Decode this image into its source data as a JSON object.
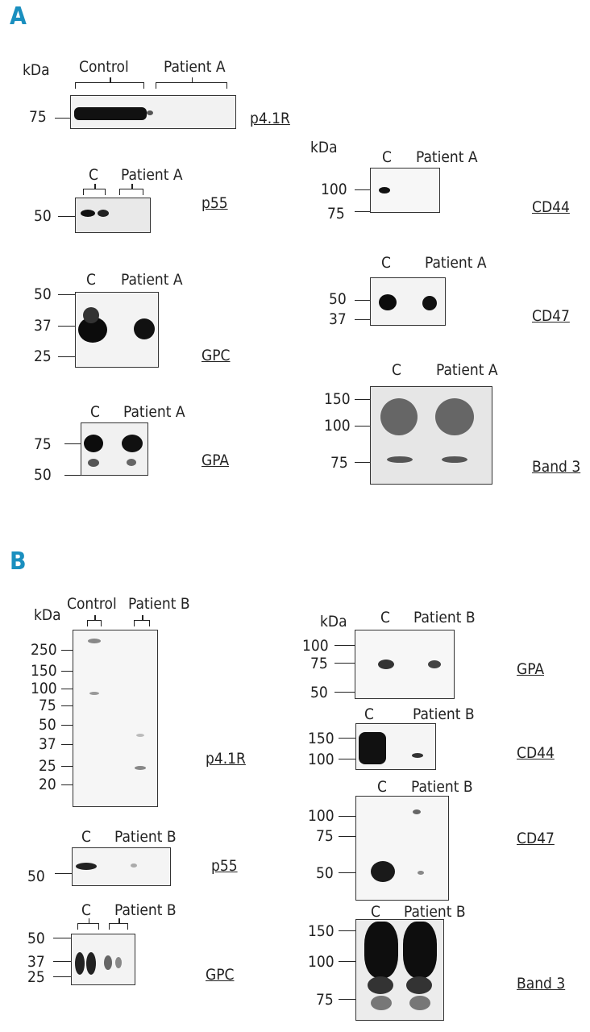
{
  "panels": {
    "a": "A",
    "b": "B"
  },
  "kda": "kDa",
  "ctrl": "Control",
  "c": "C",
  "pa": "Patient A",
  "pb": "Patient B",
  "proteins": {
    "p41r": "p4.1R",
    "p55": "p55",
    "gpc": "GPC",
    "gpa": "GPA",
    "cd44": "CD44",
    "cd47": "CD47",
    "band3": "Band 3"
  },
  "markers": {
    "m250": "250",
    "m150": "150",
    "m100": "100",
    "m75": "75",
    "m50": "50",
    "m37": "37",
    "m25": "25",
    "m20": "20"
  }
}
